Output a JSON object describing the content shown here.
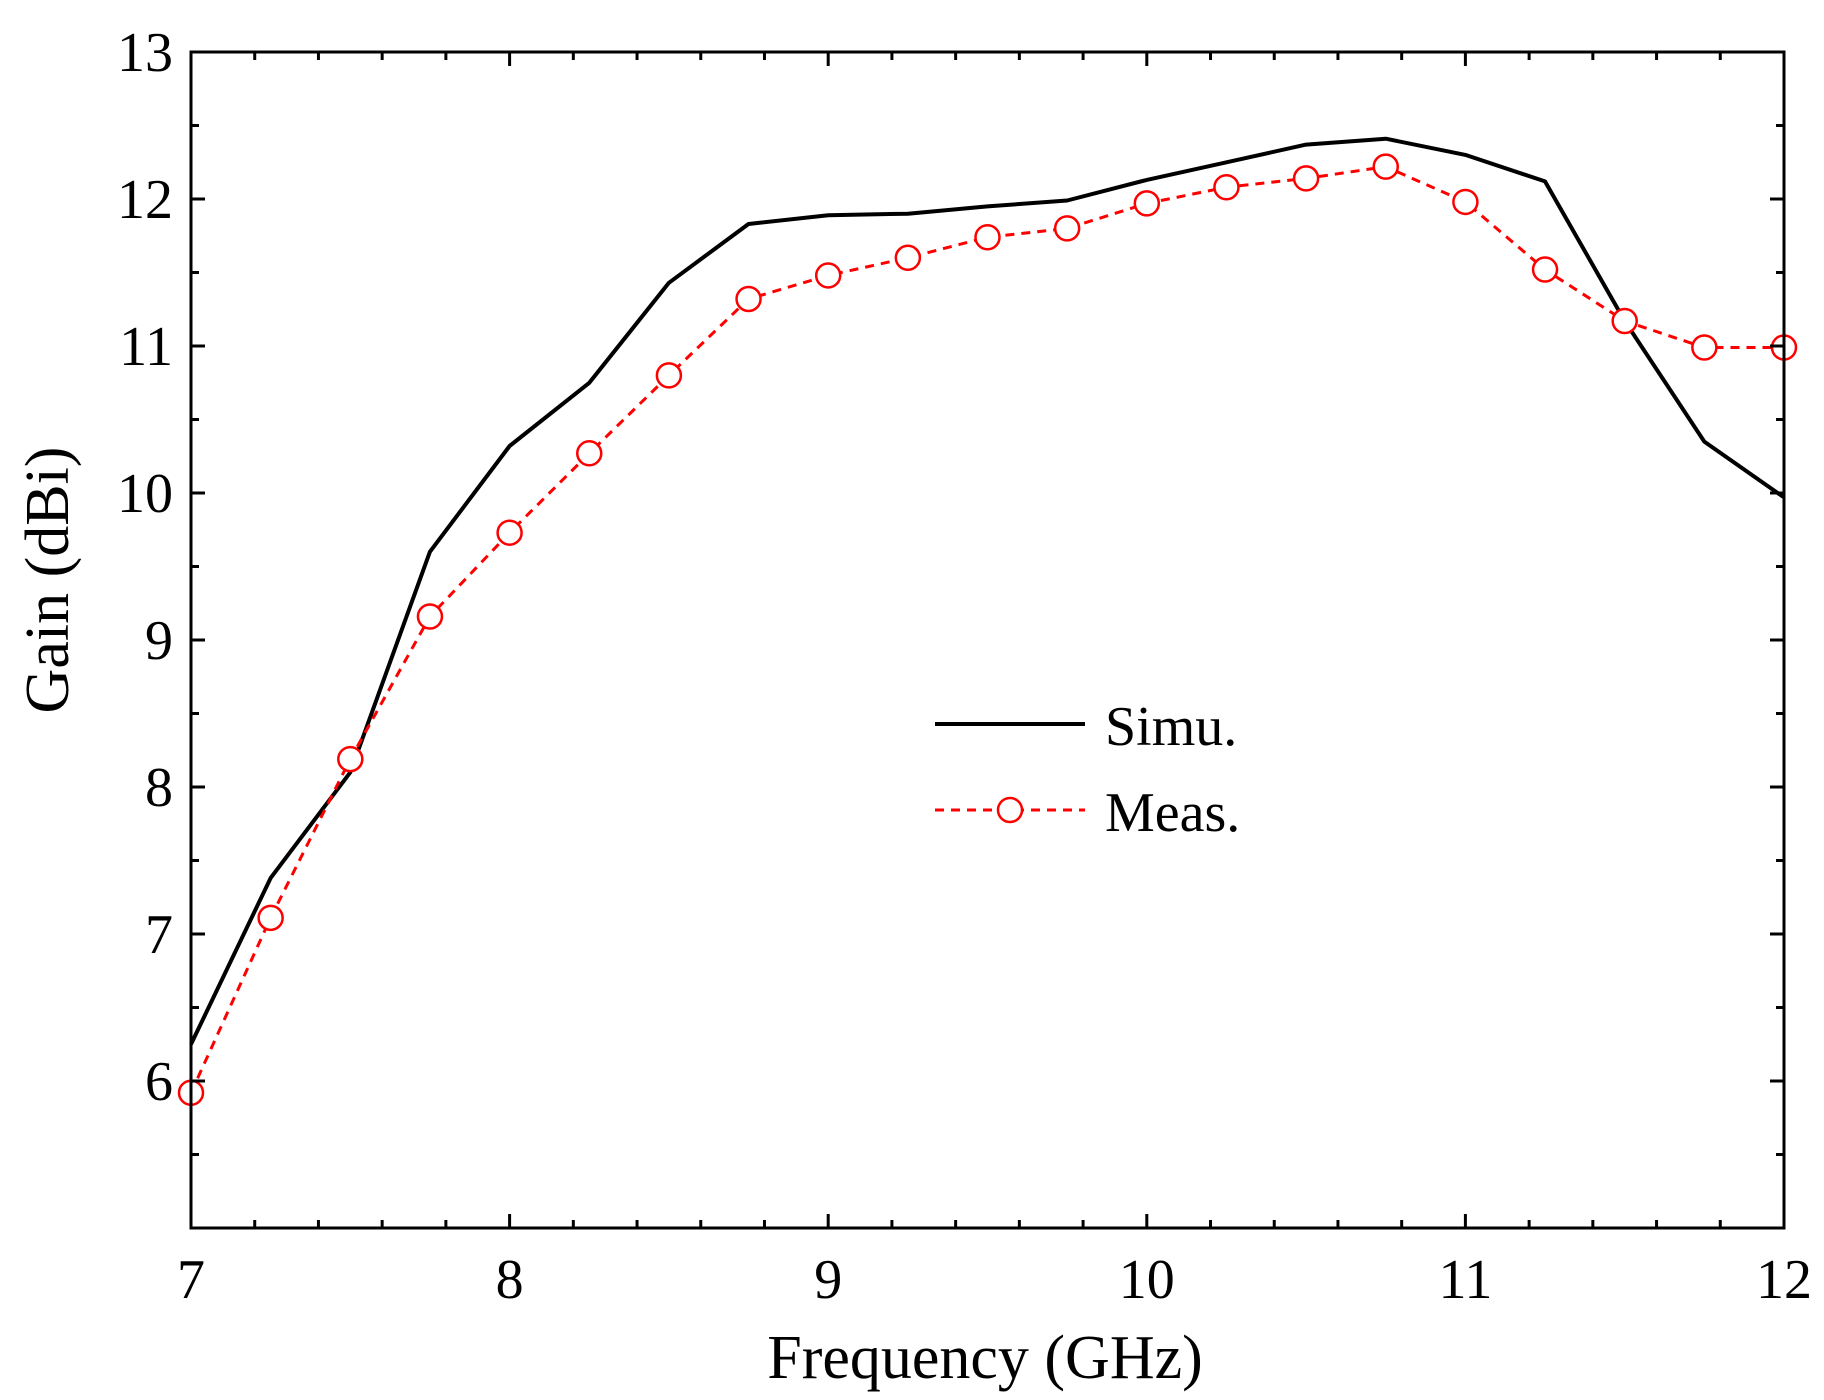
{
  "chart_data": {
    "type": "line",
    "title": "",
    "xlabel": "Frequency (GHz)",
    "ylabel": "Gain (dBi)",
    "xlim": [
      7,
      12
    ],
    "ylim": [
      5,
      13
    ],
    "xticks": [
      7,
      8,
      9,
      10,
      11,
      12
    ],
    "yticks": [
      6,
      7,
      8,
      9,
      10,
      11,
      12,
      13
    ],
    "legend_position": "center",
    "grid": false,
    "series": [
      {
        "name": "Simu.",
        "color": "#000000",
        "style": "solid",
        "marker": "none",
        "x": [
          7.0,
          7.25,
          7.5,
          7.75,
          8.0,
          8.25,
          8.5,
          8.75,
          9.0,
          9.25,
          9.5,
          9.75,
          10.0,
          10.25,
          10.5,
          10.75,
          11.0,
          11.25,
          11.5,
          11.75,
          12.0
        ],
        "values": [
          6.25,
          7.38,
          8.1,
          9.6,
          10.32,
          10.75,
          11.43,
          11.83,
          11.89,
          11.9,
          11.95,
          11.99,
          12.13,
          12.25,
          12.37,
          12.41,
          12.3,
          12.12,
          11.17,
          10.35,
          9.97
        ]
      },
      {
        "name": "Meas.",
        "color": "#ff0000",
        "style": "dashed",
        "marker": "open-circle",
        "x": [
          7.0,
          7.25,
          7.5,
          7.75,
          8.0,
          8.25,
          8.5,
          8.75,
          9.0,
          9.25,
          9.5,
          9.75,
          10.0,
          10.25,
          10.5,
          10.75,
          11.0,
          11.25,
          11.5,
          11.75,
          12.0
        ],
        "values": [
          5.92,
          7.11,
          8.19,
          9.16,
          9.73,
          10.27,
          10.8,
          11.32,
          11.48,
          11.6,
          11.74,
          11.8,
          11.97,
          12.08,
          12.14,
          12.22,
          11.98,
          11.52,
          11.17,
          10.99,
          10.99
        ]
      }
    ]
  }
}
